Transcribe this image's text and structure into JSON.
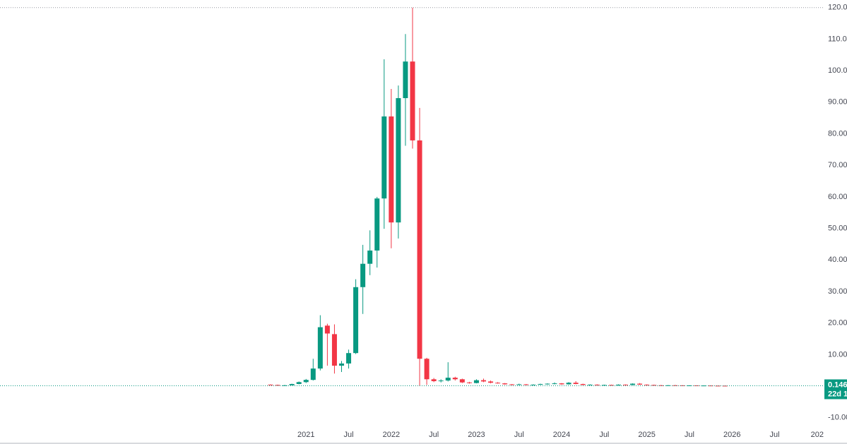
{
  "chart_data": {
    "type": "candlestick",
    "x": [
      "2020-08",
      "2020-09",
      "2020-10",
      "2020-11",
      "2020-12",
      "2021-01",
      "2021-02",
      "2021-03",
      "2021-04",
      "2021-05",
      "2021-06",
      "2021-07",
      "2021-08",
      "2021-09",
      "2021-10",
      "2021-11",
      "2021-12",
      "2022-01",
      "2022-02",
      "2022-03",
      "2022-04",
      "2022-05",
      "2022-06",
      "2022-07",
      "2022-08",
      "2022-09",
      "2022-10",
      "2022-11",
      "2022-12",
      "2023-01",
      "2023-02",
      "2023-03",
      "2023-04",
      "2023-05",
      "2023-06",
      "2023-07",
      "2023-08",
      "2023-09",
      "2023-10",
      "2023-11",
      "2023-12",
      "2024-01",
      "2024-02",
      "2024-03",
      "2024-04",
      "2024-05",
      "2024-06",
      "2024-07",
      "2024-08",
      "2024-09",
      "2024-10",
      "2024-11",
      "2024-12",
      "2025-01",
      "2025-02",
      "2025-03",
      "2025-04",
      "2025-05",
      "2025-06",
      "2025-07",
      "2025-08",
      "2025-09",
      "2025-10",
      "2025-11",
      "2025-12"
    ],
    "open": [
      0.5,
      0.4,
      0.3,
      0.3,
      0.7,
      1.3,
      2.0,
      5.6,
      19.2,
      16.5,
      6.5,
      7.2,
      10.5,
      31.4,
      38.8,
      43.0,
      59.5,
      85.5,
      51.9,
      91.3,
      102.9,
      77.9,
      8.7,
      2.2,
      1.6,
      1.8,
      2.7,
      2.2,
      1.2,
      1.0,
      1.9,
      1.5,
      1.1,
      0.9,
      0.6,
      0.4,
      0.6,
      0.4,
      0.5,
      0.7,
      0.8,
      0.9,
      0.6,
      1.1,
      0.7,
      0.4,
      0.5,
      0.3,
      0.4,
      0.3,
      0.5,
      0.4,
      0.8,
      0.5,
      0.4,
      0.3,
      0.25,
      0.3,
      0.28,
      0.2,
      0.25,
      0.2,
      0.22,
      0.17,
      0.16
    ],
    "high": [
      0.6,
      0.5,
      0.4,
      0.8,
      1.5,
      2.3,
      8.7,
      22.5,
      19.8,
      19.6,
      8.0,
      11.6,
      33.9,
      44.8,
      49.4,
      60.0,
      103.6,
      94.2,
      95.3,
      111.6,
      120,
      88.2,
      9.0,
      2.6,
      2.2,
      7.6,
      3.0,
      2.4,
      1.4,
      2.2,
      2.4,
      1.8,
      1.3,
      1.0,
      0.7,
      0.8,
      0.7,
      0.6,
      0.8,
      0.9,
      1.2,
      1.0,
      1.3,
      1.6,
      0.8,
      0.6,
      0.6,
      0.5,
      0.5,
      0.6,
      0.6,
      0.9,
      1.0,
      0.6,
      0.5,
      0.4,
      0.35,
      0.4,
      0.3,
      0.3,
      0.28,
      0.25,
      0.26,
      0.2,
      0.18
    ],
    "low": [
      0.3,
      0.2,
      0.2,
      0.3,
      0.6,
      1.0,
      1.8,
      5.0,
      6.5,
      4.0,
      4.5,
      5.6,
      10.2,
      22.9,
      35.2,
      37.6,
      49.9,
      43.7,
      46.8,
      76.2,
      75.3,
      0.1,
      0.4,
      1.3,
      1.2,
      1.5,
      1.8,
      1.0,
      0.8,
      0.9,
      1.3,
      0.9,
      0.8,
      0.5,
      0.3,
      0.3,
      0.3,
      0.3,
      0.4,
      0.5,
      0.6,
      0.5,
      0.5,
      0.6,
      0.3,
      0.3,
      0.3,
      0.2,
      0.2,
      0.2,
      0.3,
      0.3,
      0.4,
      0.3,
      0.2,
      0.2,
      0.18,
      0.2,
      0.18,
      0.17,
      0.18,
      0.16,
      0.15,
      0.13,
      0.14
    ],
    "close": [
      0.4,
      0.3,
      0.3,
      0.7,
      1.3,
      2.0,
      5.6,
      18.7,
      16.7,
      6.5,
      7.2,
      10.5,
      31.4,
      38.8,
      43.0,
      59.5,
      85.5,
      51.9,
      91.3,
      102.9,
      77.9,
      8.7,
      2.2,
      1.6,
      1.8,
      2.7,
      2.2,
      1.2,
      1.0,
      1.9,
      1.5,
      1.1,
      0.9,
      0.6,
      0.4,
      0.6,
      0.4,
      0.5,
      0.7,
      0.8,
      0.9,
      0.6,
      1.1,
      0.7,
      0.4,
      0.5,
      0.3,
      0.4,
      0.3,
      0.5,
      0.4,
      0.8,
      0.5,
      0.4,
      0.3,
      0.25,
      0.3,
      0.28,
      0.2,
      0.25,
      0.2,
      0.22,
      0.17,
      0.16,
      0.146
    ],
    "up_color": "#089981",
    "down_color": "#f23645",
    "ylim": [
      -12.5,
      122.4
    ],
    "yticks": [
      {
        "value": 120,
        "label": "120.00"
      },
      {
        "value": 110,
        "label": "110.00"
      },
      {
        "value": 100,
        "label": "100.00"
      },
      {
        "value": 90,
        "label": "90.00"
      },
      {
        "value": 80,
        "label": "80.00"
      },
      {
        "value": 70,
        "label": "70.00"
      },
      {
        "value": 60,
        "label": "60.00"
      },
      {
        "value": 50,
        "label": "50.00"
      },
      {
        "value": 40,
        "label": "40.00"
      },
      {
        "value": 30,
        "label": "30.00"
      },
      {
        "value": 20,
        "label": "20.00"
      },
      {
        "value": 10,
        "label": "10.00"
      },
      {
        "value": -10,
        "label": "-10.00"
      }
    ],
    "xticks": [
      {
        "value": "2021-01",
        "label": "2021"
      },
      {
        "value": "2021-07",
        "label": "Jul"
      },
      {
        "value": "2022-01",
        "label": "2022"
      },
      {
        "value": "2022-07",
        "label": "Jul"
      },
      {
        "value": "2023-01",
        "label": "2023"
      },
      {
        "value": "2023-07",
        "label": "Jul"
      },
      {
        "value": "2024-01",
        "label": "2024"
      },
      {
        "value": "2024-07",
        "label": "Jul"
      },
      {
        "value": "2025-01",
        "label": "2025"
      },
      {
        "value": "2025-07",
        "label": "Jul"
      },
      {
        "value": "2026-01",
        "label": "2026"
      },
      {
        "value": "2026-07",
        "label": "Jul"
      },
      {
        "value": "2027-01",
        "label": "202"
      }
    ],
    "countdown": "22d 1"
  }
}
